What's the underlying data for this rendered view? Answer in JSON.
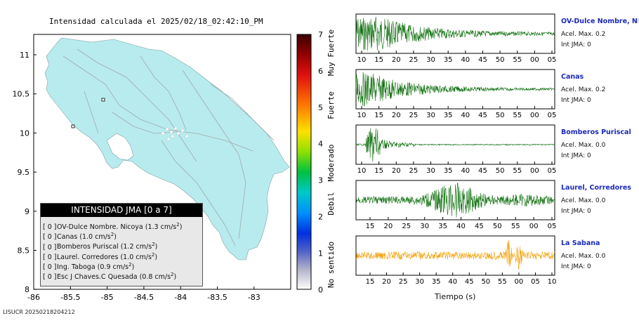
{
  "map": {
    "title": "Intensidad calculada el 2025/02/18_02:42:10_PM",
    "xticks": [
      "-86",
      "-85.5",
      "-85",
      "-84.5",
      "-84",
      "-83.5",
      "-83"
    ],
    "yticks": [
      "11",
      "10.5",
      "10",
      "9.5",
      "9",
      "8.5",
      "8"
    ],
    "land_color": "#b8ebee",
    "sea_color": "#ffffff"
  },
  "colorbar": {
    "ticks": [
      "7",
      "6",
      "5",
      "4",
      "3",
      "2",
      "1",
      "0"
    ],
    "labels": [
      "Muy Fuerte",
      "Fuerte",
      "Moderado",
      "Debil",
      "No sentido"
    ]
  },
  "legend": {
    "header": "INTENSIDAD JMA [0 a 7]",
    "items": [
      {
        "value": "[ 0 ]",
        "name": "OV-Dulce Nombre. Nicoya",
        "accel": "(1.3 cm/s",
        "sup": "2",
        "close": ")"
      },
      {
        "value": "[ 0 ]",
        "name": "Canas",
        "accel": "(1.0 cm/s",
        "sup": "2",
        "close": ")"
      },
      {
        "value": "[ 0 ]",
        "name": "Bomberos Puriscal",
        "accel": "(1.2 cm/s",
        "sup": "2",
        "close": ")"
      },
      {
        "value": "[ 0 ]",
        "name": "Laurel. Corredores",
        "accel": "(1.0 cm/s",
        "sup": "2",
        "close": ")"
      },
      {
        "value": "[ 0 ]",
        "name": "Ing. Taboga",
        "accel": "(0.9 cm/s",
        "sup": "2",
        "close": ")"
      },
      {
        "value": "[ 0 ]",
        "name": "Esc J Chaves.C Quesada",
        "accel": "(0.8 cm/s",
        "sup": "2",
        "close": ")"
      }
    ]
  },
  "stations": [
    {
      "name": "OV-Dulce Nombre, Nicoya",
      "accel": "Acel. Max. 0.2",
      "int": "Int JMA: 0",
      "ticks": [
        "10",
        "15",
        "20",
        "25",
        "30",
        "35",
        "40",
        "45",
        "50",
        "55",
        "00",
        "05"
      ],
      "color": "#0c6e0c"
    },
    {
      "name": "Canas",
      "accel": "Acel. Max. 0.2",
      "int": "Int JMA: 0",
      "ticks": [
        "10",
        "15",
        "20",
        "25",
        "30",
        "35",
        "40",
        "45",
        "50",
        "55",
        "00",
        "05"
      ],
      "color": "#0c6e0c"
    },
    {
      "name": "Bomberos Puriscal",
      "accel": "Acel. Max. 0.0",
      "int": "Int JMA: 0",
      "ticks": [
        "10",
        "15",
        "20",
        "25",
        "30",
        "35",
        "40",
        "45",
        "50",
        "55",
        "00",
        "05"
      ],
      "color": "#0c6e0c"
    },
    {
      "name": "Laurel, Corredores",
      "accel": "Acel. Max. 0.0",
      "int": "Int JMA: 0",
      "ticks": [
        "15",
        "20",
        "25",
        "30",
        "35",
        "40",
        "45",
        "50",
        "55",
        "00",
        "05"
      ],
      "color": "#0c6e0c"
    },
    {
      "name": "La Sabana",
      "accel": "Acel. Max. 0.0",
      "int": "Int JMA: 0",
      "ticks": [
        "15",
        "20",
        "25",
        "30",
        "35",
        "40",
        "45",
        "50",
        "55",
        "00",
        "05",
        "10"
      ],
      "color": "#f2a20a"
    }
  ],
  "time_axis_label": "Tiempo (s)",
  "footer": "LISUCR 20250218204212"
}
